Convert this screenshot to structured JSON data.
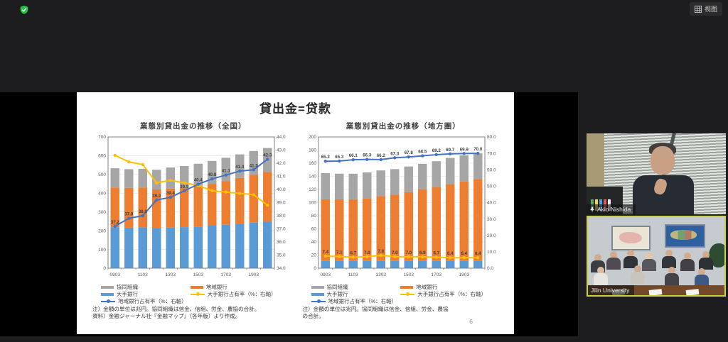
{
  "window": {
    "security_icon": "shield-check",
    "view_button": {
      "label": "视图",
      "icon": "grid"
    }
  },
  "slide": {
    "title": "貸出金=贷款",
    "page_number": "6"
  },
  "participants": [
    {
      "name": "Akio Nishida",
      "pinned": true,
      "active_speaker": false
    },
    {
      "name": "Jilin University",
      "pinned": false,
      "active_speaker": true
    }
  ],
  "colors": {
    "bar_gray": "#a6a6a6",
    "bar_orange": "#ed7d31",
    "bar_blue": "#5b9bd5",
    "line_yellow": "#ffc000",
    "line_blue": "#4472c4",
    "active_speaker_border": "#c9d146",
    "shield_green": "#23c343"
  },
  "chart_data": [
    {
      "type": "bar",
      "subtype": "stacked-bar-with-lines",
      "title": "業態別貸出金の推移（全国）",
      "unit": "兆円",
      "n_bars": 12,
      "x_tick_labels": [
        "0903",
        "1103",
        "1303",
        "1503",
        "1703",
        "1903"
      ],
      "left_axis": {
        "min": 0,
        "max": 700,
        "step": 100
      },
      "right_axis": {
        "min": 34.0,
        "max": 44.0,
        "step": 1.0
      },
      "bar_series": [
        {
          "name": "大手銀行",
          "color": "#5b9bd5",
          "values": [
            218,
            216,
            218,
            214,
            217,
            219,
            222,
            227,
            232,
            238,
            243,
            248
          ]
        },
        {
          "name": "地域銀行",
          "color": "#ed7d31",
          "values": [
            212,
            212,
            212,
            206,
            208,
            211,
            218,
            223,
            233,
            243,
            255,
            265
          ]
        },
        {
          "name": "協同組織",
          "color": "#a6a6a6",
          "values": [
            103,
            100,
            100,
            105,
            112,
            115,
            117,
            122,
            124,
            126,
            127,
            128
          ]
        }
      ],
      "line_series": [
        {
          "name": "大手銀行占有率（%：右軸）",
          "color": "#ffc000",
          "axis": "right",
          "show_labels": false,
          "values": [
            42.6,
            42.1,
            41.9,
            40.5,
            40.7,
            40.5,
            40.3,
            39.9,
            39.8,
            39.7,
            39.6,
            38.8
          ]
        },
        {
          "name": "地域銀行占有率（%：右軸）",
          "color": "#4472c4",
          "axis": "right",
          "show_labels": true,
          "values": [
            37.2,
            37.8,
            38.0,
            39.2,
            39.4,
            39.9,
            40.4,
            40.8,
            41.1,
            41.4,
            41.5,
            42.3
          ]
        }
      ],
      "legend": [
        {
          "label": "協同組織",
          "swatch": "bar",
          "color": "#a6a6a6"
        },
        {
          "label": "地域銀行",
          "swatch": "bar",
          "color": "#ed7d31"
        },
        {
          "label": "大手銀行",
          "swatch": "bar",
          "color": "#5b9bd5"
        },
        {
          "label": "大手銀行占有率（%：右軸）",
          "swatch": "line",
          "color": "#ffc000"
        },
        {
          "label": "地域銀行占有率（%：右軸）",
          "swatch": "line",
          "color": "#4472c4"
        }
      ],
      "notes": [
        "注）金額の単位は兆円。協同組織は信金、信組、労金、農協の合計。",
        "資料）金融ジャーナル社『金融マップ』（各年版）より作成。"
      ]
    },
    {
      "type": "bar",
      "subtype": "stacked-bar-with-lines",
      "title": "業態別貸出金の推移（地方圏）",
      "unit": "兆円",
      "n_bars": 12,
      "x_tick_labels": [
        "0903",
        "1103",
        "1303",
        "1503",
        "1703",
        "1903"
      ],
      "left_axis": {
        "min": 0,
        "max": 200,
        "step": 20
      },
      "right_axis": {
        "min": 0.0,
        "max": 80.0,
        "step": 10.0
      },
      "bar_series": [
        {
          "name": "大手銀行",
          "color": "#5b9bd5",
          "values": [
            11,
            11,
            11,
            11,
            11,
            11,
            11,
            11,
            11,
            11,
            11,
            11
          ]
        },
        {
          "name": "地域銀行",
          "color": "#ed7d31",
          "values": [
            94,
            94,
            94,
            95,
            99,
            101,
            105,
            109,
            113,
            117,
            121,
            125
          ]
        },
        {
          "name": "協同組織",
          "color": "#a6a6a6",
          "values": [
            40,
            39,
            39,
            40,
            39,
            39,
            39,
            39,
            39,
            40,
            40,
            39
          ]
        }
      ],
      "line_series": [
        {
          "name": "大手銀行占有率（%：右軸）",
          "color": "#ffc000",
          "axis": "right",
          "show_labels": true,
          "values": [
            7.4,
            7.1,
            6.7,
            7.0,
            7.8,
            7.0,
            7.0,
            6.9,
            6.7,
            6.4,
            6.4,
            6.4
          ]
        },
        {
          "name": "地域銀行占有率（%：右軸）",
          "color": "#4472c4",
          "axis": "right",
          "show_labels": true,
          "values": [
            65.2,
            65.3,
            66.1,
            66.3,
            66.2,
            67.3,
            67.8,
            68.5,
            69.2,
            69.7,
            69.9,
            70.0
          ]
        }
      ],
      "legend": [
        {
          "label": "協同組織",
          "swatch": "bar",
          "color": "#a6a6a6"
        },
        {
          "label": "地域銀行",
          "swatch": "bar",
          "color": "#ed7d31"
        },
        {
          "label": "大手銀行",
          "swatch": "bar",
          "color": "#5b9bd5"
        },
        {
          "label": "大手銀行占有率（%：右軸）",
          "swatch": "line",
          "color": "#ffc000"
        },
        {
          "label": "地域銀行占有率（%：右軸）",
          "swatch": "line",
          "color": "#4472c4"
        }
      ],
      "notes": [
        "注）金額の単位は兆円。協同組織は信金、信組、労金、農協\nの合計。"
      ]
    }
  ]
}
